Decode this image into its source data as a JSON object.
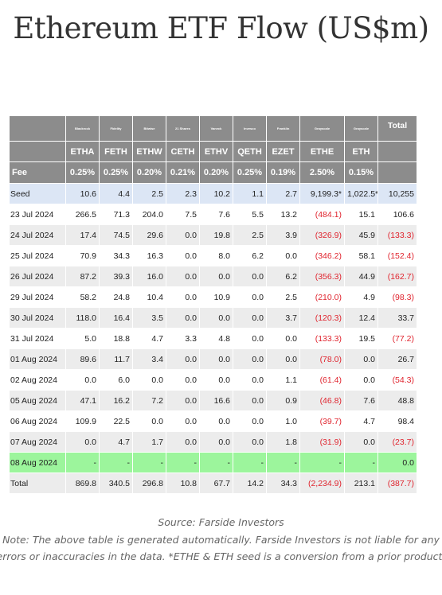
{
  "title": "Ethereum ETF Flow (US$m)",
  "table": {
    "issuers": [
      "Blackrock",
      "Fidelity",
      "Bitwise",
      "21 Shares",
      "Vaneck",
      "Invesco",
      "Franklin",
      "Grayscale",
      "Grayscale"
    ],
    "total_label": "Total",
    "tickers": [
      "ETHA",
      "FETH",
      "ETHW",
      "CETH",
      "ETHV",
      "QETH",
      "EZET",
      "ETHE",
      "ETH"
    ],
    "fee_label": "Fee",
    "fees": [
      "0.25%",
      "0.25%",
      "0.20%",
      "0.21%",
      "0.20%",
      "0.25%",
      "0.19%",
      "2.50%",
      "0.15%"
    ],
    "rows": [
      {
        "date": "Seed",
        "values": [
          "10.6",
          "4.4",
          "2.5",
          "2.3",
          "10.2",
          "1.1",
          "2.7",
          "9,199.3*",
          "1,022.5*"
        ],
        "total": "10,255"
      },
      {
        "date": "23 Jul 2024",
        "values": [
          "266.5",
          "71.3",
          "204.0",
          "7.5",
          "7.6",
          "5.5",
          "13.2",
          "(484.1)",
          "15.1"
        ],
        "total": "106.6"
      },
      {
        "date": "24 Jul 2024",
        "values": [
          "17.4",
          "74.5",
          "29.6",
          "0.0",
          "19.8",
          "2.5",
          "3.9",
          "(326.9)",
          "45.9"
        ],
        "total": "(133.3)"
      },
      {
        "date": "25 Jul 2024",
        "values": [
          "70.9",
          "34.3",
          "16.3",
          "0.0",
          "8.0",
          "6.2",
          "0.0",
          "(346.2)",
          "58.1"
        ],
        "total": "(152.4)"
      },
      {
        "date": "26 Jul 2024",
        "values": [
          "87.2",
          "39.3",
          "16.0",
          "0.0",
          "0.0",
          "0.0",
          "6.2",
          "(356.3)",
          "44.9"
        ],
        "total": "(162.7)"
      },
      {
        "date": "29 Jul 2024",
        "values": [
          "58.2",
          "24.8",
          "10.4",
          "0.0",
          "10.9",
          "0.0",
          "2.5",
          "(210.0)",
          "4.9"
        ],
        "total": "(98.3)"
      },
      {
        "date": "30 Jul 2024",
        "values": [
          "118.0",
          "16.4",
          "3.5",
          "0.0",
          "0.0",
          "0.0",
          "3.7",
          "(120.3)",
          "12.4"
        ],
        "total": "33.7"
      },
      {
        "date": "31 Jul 2024",
        "values": [
          "5.0",
          "18.8",
          "4.7",
          "3.3",
          "4.8",
          "0.0",
          "0.0",
          "(133.3)",
          "19.5"
        ],
        "total": "(77.2)"
      },
      {
        "date": "01 Aug 2024",
        "values": [
          "89.6",
          "11.7",
          "3.4",
          "0.0",
          "0.0",
          "0.0",
          "0.0",
          "(78.0)",
          "0.0"
        ],
        "total": "26.7"
      },
      {
        "date": "02 Aug 2024",
        "values": [
          "0.0",
          "6.0",
          "0.0",
          "0.0",
          "0.0",
          "0.0",
          "1.1",
          "(61.4)",
          "0.0"
        ],
        "total": "(54.3)"
      },
      {
        "date": "05 Aug 2024",
        "values": [
          "47.1",
          "16.2",
          "7.2",
          "0.0",
          "16.6",
          "0.0",
          "0.9",
          "(46.8)",
          "7.6"
        ],
        "total": "48.8"
      },
      {
        "date": "06 Aug 2024",
        "values": [
          "109.9",
          "22.5",
          "0.0",
          "0.0",
          "0.0",
          "0.0",
          "1.0",
          "(39.7)",
          "4.7"
        ],
        "total": "98.4"
      },
      {
        "date": "07 Aug 2024",
        "values": [
          "0.0",
          "4.7",
          "1.7",
          "0.0",
          "0.0",
          "0.0",
          "1.8",
          "(31.9)",
          "0.0"
        ],
        "total": "(23.7)"
      },
      {
        "date": "08 Aug 2024",
        "values": [
          "-",
          "-",
          "-",
          "-",
          "-",
          "-",
          "-",
          "-",
          "-"
        ],
        "total": "0.0"
      },
      {
        "date": "Total",
        "values": [
          "869.8",
          "340.5",
          "296.8",
          "10.8",
          "67.7",
          "14.2",
          "34.3",
          "(2,234.9)",
          "213.1"
        ],
        "total": "(387.7)"
      }
    ]
  },
  "source_text": "Source: Farside Investors",
  "note_text": "Note: The above table is generated automatically. Farside Investors is not liable for any errors or inaccuracies in the data. *ETHE & ETH seed is a conversion from a prior product.",
  "colors": {
    "header_bg": "#8c8c8c",
    "seed_row_bg": "#dce6f5",
    "stripe_bg": "#ececec",
    "highlight_row_bg": "#9cf59c",
    "negative_text": "#e0242e"
  }
}
